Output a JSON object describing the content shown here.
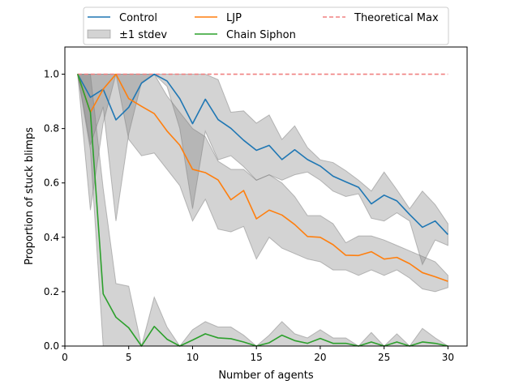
{
  "chart_data": {
    "type": "line",
    "xlabel": "Number of agents",
    "ylabel": "Proportion of stuck blimps",
    "xlim": [
      0.0,
      31.5
    ],
    "ylim": [
      0.0,
      1.1
    ],
    "xticks": [
      0,
      5,
      10,
      15,
      20,
      25,
      30
    ],
    "xtick_labels": [
      "0",
      "5",
      "10",
      "15",
      "20",
      "25",
      "30"
    ],
    "yticks": [
      0.0,
      0.2,
      0.4,
      0.6,
      0.8,
      1.0
    ],
    "ytick_labels": [
      "0.0",
      "0.2",
      "0.4",
      "0.6",
      "0.8",
      "1.0"
    ],
    "grid": false,
    "legend_position": "top, above plot, 3 columns",
    "x": [
      1,
      2,
      3,
      4,
      5,
      6,
      7,
      8,
      9,
      10,
      11,
      12,
      13,
      14,
      15,
      16,
      17,
      18,
      19,
      20,
      21,
      22,
      23,
      24,
      25,
      26,
      27,
      28,
      29,
      30
    ],
    "series": [
      {
        "name": "Control",
        "color": "#1f77b4",
        "values": [
          1.0,
          0.915,
          0.945,
          0.832,
          0.878,
          0.967,
          1.0,
          0.975,
          0.91,
          0.818,
          0.908,
          0.833,
          0.801,
          0.757,
          0.72,
          0.738,
          0.686,
          0.722,
          0.686,
          0.662,
          0.625,
          0.604,
          0.584,
          0.523,
          0.555,
          0.534,
          0.484,
          0.437,
          0.46,
          0.41
        ],
        "band_lower": [
          1.0,
          0.74,
          0.88,
          0.46,
          0.78,
          0.97,
          1.0,
          0.955,
          0.8,
          0.505,
          0.79,
          0.685,
          0.7,
          0.66,
          0.61,
          0.63,
          0.61,
          0.63,
          0.64,
          0.61,
          0.57,
          0.55,
          0.56,
          0.47,
          0.46,
          0.49,
          0.46,
          0.3,
          0.39,
          0.37
        ],
        "band_upper": [
          1.0,
          1.0,
          1.0,
          1.0,
          1.0,
          1.0,
          1.0,
          1.0,
          1.0,
          1.0,
          1.0,
          0.98,
          0.86,
          0.865,
          0.82,
          0.85,
          0.76,
          0.81,
          0.73,
          0.685,
          0.675,
          0.645,
          0.61,
          0.57,
          0.64,
          0.575,
          0.505,
          0.57,
          0.52,
          0.45
        ]
      },
      {
        "name": "LJP",
        "color": "#ff7f0e",
        "values": [
          1.0,
          0.86,
          0.945,
          1.0,
          0.91,
          0.882,
          0.855,
          0.791,
          0.739,
          0.65,
          0.638,
          0.611,
          0.538,
          0.572,
          0.468,
          0.5,
          0.482,
          0.447,
          0.403,
          0.4,
          0.373,
          0.334,
          0.333,
          0.347,
          0.32,
          0.326,
          0.303,
          0.27,
          0.255,
          0.238
        ],
        "band_lower": [
          1.0,
          0.5,
          0.82,
          1.0,
          0.76,
          0.7,
          0.71,
          0.65,
          0.59,
          0.46,
          0.54,
          0.43,
          0.42,
          0.44,
          0.32,
          0.4,
          0.36,
          0.34,
          0.32,
          0.31,
          0.28,
          0.28,
          0.26,
          0.28,
          0.26,
          0.28,
          0.25,
          0.21,
          0.2,
          0.215
        ],
        "band_upper": [
          1.0,
          1.0,
          1.0,
          1.0,
          1.0,
          1.0,
          1.0,
          0.92,
          0.86,
          0.8,
          0.77,
          0.68,
          0.65,
          0.65,
          0.61,
          0.63,
          0.6,
          0.55,
          0.48,
          0.48,
          0.45,
          0.38,
          0.405,
          0.405,
          0.39,
          0.37,
          0.35,
          0.33,
          0.31,
          0.26
        ]
      },
      {
        "name": "Chain Siphon",
        "color": "#2ca02c",
        "values": [
          1.0,
          0.86,
          0.192,
          0.106,
          0.067,
          0.0,
          0.072,
          0.025,
          0.0,
          0.022,
          0.045,
          0.03,
          0.027,
          0.015,
          0.0,
          0.012,
          0.04,
          0.02,
          0.01,
          0.028,
          0.01,
          0.01,
          0.0,
          0.015,
          0.0,
          0.015,
          0.0,
          0.015,
          0.01,
          0.0
        ],
        "band_lower": [
          1.0,
          0.72,
          0.0,
          0.0,
          0.0,
          0.0,
          0.0,
          0.0,
          0.0,
          0.0,
          0.0,
          0.0,
          0.0,
          0.0,
          0.0,
          0.0,
          0.0,
          0.0,
          0.0,
          0.0,
          0.0,
          0.0,
          0.0,
          0.0,
          0.0,
          0.0,
          0.0,
          0.0,
          0.0,
          0.0
        ],
        "band_upper": [
          1.0,
          1.0,
          0.58,
          0.23,
          0.22,
          0.0,
          0.18,
          0.07,
          0.0,
          0.06,
          0.09,
          0.07,
          0.07,
          0.04,
          0.0,
          0.04,
          0.09,
          0.045,
          0.03,
          0.06,
          0.03,
          0.03,
          0.0,
          0.05,
          0.0,
          0.045,
          0.0,
          0.065,
          0.03,
          0.0
        ]
      }
    ],
    "band_legend_label": "±1 stdev",
    "band_color": "#808080",
    "reference_line": {
      "name": "Theoretical Max",
      "value": 1.0,
      "color": "#f08080",
      "style": "dashed"
    }
  }
}
